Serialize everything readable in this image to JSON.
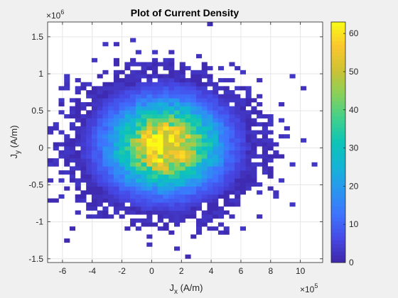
{
  "chart_data": {
    "type": "heatmap",
    "title": "Plot of Current Density",
    "xlabel_main": "J",
    "xlabel_sub": "x",
    "xlabel_unit": " (A/m)",
    "ylabel_main": "J",
    "ylabel_sub": "y",
    "ylabel_unit": " (A/m)",
    "x_multiplier_base": "×10",
    "x_multiplier_exp": "5",
    "y_multiplier_base": "×10",
    "y_multiplier_exp": "6",
    "xlim": [
      -7.0,
      11.5
    ],
    "ylim": [
      -1.55,
      1.7
    ],
    "x_ticks": [
      -6,
      -4,
      -2,
      0,
      2,
      4,
      6,
      8,
      10
    ],
    "x_tick_labels": [
      "-6",
      "-4",
      "-2",
      "0",
      "2",
      "4",
      "6",
      "8",
      "10"
    ],
    "y_ticks": [
      -1.5,
      -1,
      -0.5,
      0,
      0.5,
      1,
      1.5
    ],
    "y_tick_labels": [
      "-1.5",
      "-1",
      "-0.5",
      "0",
      "0.5",
      "1",
      "1.5"
    ],
    "grid": true,
    "distribution": {
      "center": [
        0.9,
        0.03
      ],
      "sigma": [
        2.4,
        0.38
      ],
      "peak_count": 62,
      "nx": 50,
      "ny": 60,
      "seed": 7
    },
    "colorbar": {
      "min": 0,
      "max": 63,
      "ticks": [
        0,
        10,
        20,
        30,
        40,
        50,
        60
      ],
      "tick_labels": [
        "0",
        "10",
        "20",
        "30",
        "40",
        "50",
        "60"
      ],
      "colormap": "parula"
    }
  }
}
